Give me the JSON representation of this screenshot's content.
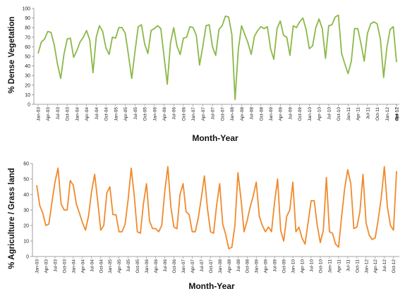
{
  "chart_data": [
    {
      "type": "line",
      "ylabel": "% Dense Vegetation",
      "xlabel": "Month-Year",
      "ylim": [
        0,
        100
      ],
      "yticks": [
        0,
        10,
        20,
        30,
        40,
        50,
        60,
        70,
        80,
        90,
        100
      ],
      "grid": false,
      "legend": "none",
      "color": "#8BB848",
      "xtick_labels": [
        "Jan-03",
        "Apr-03",
        "Jul-03",
        "Oct-03",
        "Jan-04",
        "Apr-04",
        "Jul-04",
        "Oct-04",
        "Jan-05",
        "Apr-05",
        "Jul-05",
        "Oct-05",
        "Jan-06",
        "Apr-06",
        "Jul-06",
        "Oct-06",
        "Jan-07",
        "Apr-07",
        "Jul-07",
        "Oct-07",
        "Jan-08",
        "Apr-08",
        "Jul-08",
        "Oct-08",
        "Jan-09",
        "Apr-09",
        "Jul-09",
        "Oct-09",
        "Jan-10",
        "Apr-10",
        "Jul-10",
        "Oct-10",
        "Jan-11",
        "Apr-11",
        "Jul-11",
        "Oct-11",
        "Jan-12",
        "Apr-12",
        "Jul-12",
        "Oct-12"
      ],
      "values": [
        53,
        65,
        68,
        76,
        75,
        62,
        42,
        27,
        52,
        68,
        69,
        49,
        56,
        65,
        70,
        77,
        67,
        33,
        70,
        82,
        76,
        59,
        52,
        70,
        69,
        80,
        80,
        74,
        51,
        27,
        55,
        81,
        83,
        63,
        53,
        77,
        79,
        82,
        79,
        50,
        21,
        64,
        80,
        61,
        52,
        69,
        70,
        81,
        80,
        72,
        41,
        60,
        82,
        83,
        60,
        51,
        78,
        82,
        92,
        91,
        73,
        5,
        57,
        82,
        73,
        64,
        52,
        71,
        77,
        81,
        79,
        81,
        58,
        47,
        79,
        87,
        72,
        70,
        51,
        82,
        80,
        86,
        90,
        78,
        58,
        61,
        80,
        89,
        79,
        48,
        82,
        83,
        91,
        93,
        53,
        42,
        32,
        45,
        79,
        79,
        63,
        45,
        74,
        84,
        86,
        84,
        68,
        28,
        59,
        78,
        81,
        44
      ]
    },
    {
      "type": "line",
      "ylabel": "% Agriculture / Grass land",
      "xlabel": "Month-Year",
      "ylim": [
        0,
        60
      ],
      "yticks": [
        0,
        10,
        20,
        30,
        40,
        50,
        60
      ],
      "grid": false,
      "legend": "none",
      "color": "#F08A2C",
      "xtick_labels": [
        "Jan-03",
        "Apr-03",
        "Jul-03",
        "Oct-03",
        "Jan-04",
        "Apr-04",
        "Jul-04",
        "Oct-04",
        "Jan-05",
        "Apr-05",
        "Jul-05",
        "Oct-05",
        "Jan-06",
        "Apr-06",
        "Jul-06",
        "Oct-06",
        "Jan-07",
        "Apr-07",
        "Jul-07",
        "Oct-07",
        "Jan-08",
        "Apr-08",
        "Jul-08",
        "Oct-08",
        "Jan-09",
        "Apr-09",
        "Jul-09",
        "Oct-09",
        "Jan-10",
        "Apr-10",
        "Jul-10",
        "Oct-10",
        "Jan-11",
        "Apr-11",
        "Jul-11",
        "Oct-11",
        "Jan-12",
        "Apr-12",
        "Jul-12",
        "Oct-12"
      ],
      "values": [
        46,
        33,
        28,
        20,
        21,
        35,
        48,
        57,
        34,
        30,
        30,
        49,
        46,
        34,
        28,
        22,
        17,
        26,
        42,
        53,
        36,
        17,
        20,
        41,
        45,
        27,
        27,
        16,
        16,
        21,
        37,
        57,
        39,
        16,
        15,
        34,
        47,
        23,
        18,
        18,
        16,
        20,
        42,
        58,
        32,
        19,
        18,
        40,
        47,
        29,
        27,
        16,
        16,
        25,
        38,
        52,
        31,
        16,
        15,
        33,
        47,
        21,
        14,
        5,
        6,
        20,
        54,
        37,
        16,
        23,
        32,
        39,
        48,
        26,
        20,
        16,
        19,
        16,
        35,
        50,
        17,
        10,
        26,
        30,
        48,
        16,
        19,
        12,
        8,
        22,
        36,
        36,
        20,
        9,
        17,
        51,
        16,
        15,
        8,
        6,
        26,
        44,
        56,
        47,
        18,
        19,
        29,
        53,
        22,
        14,
        11,
        12,
        24,
        38,
        58,
        32,
        20,
        17,
        55
      ]
    }
  ]
}
